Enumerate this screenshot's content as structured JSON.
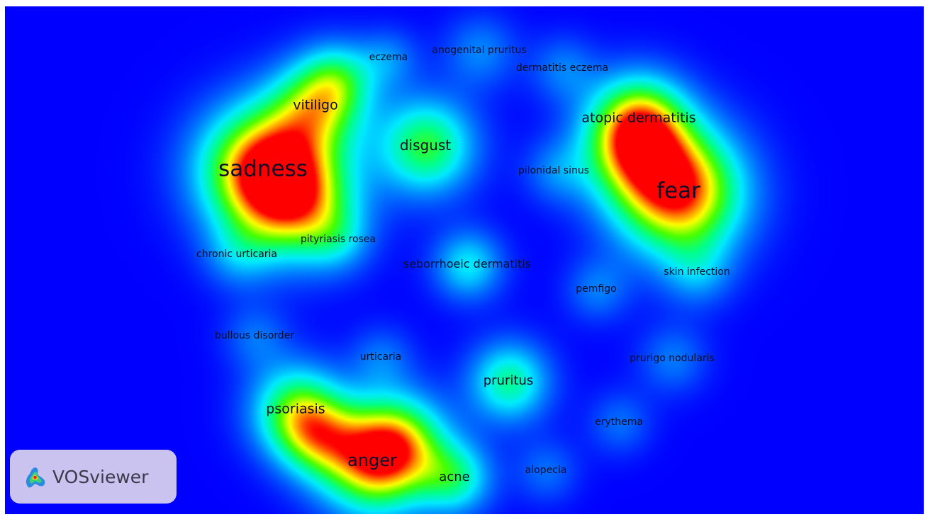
{
  "map": {
    "background": "#0000ff",
    "colormap": [
      "#0000ff",
      "#00e5ff",
      "#00ff99",
      "#66ff00",
      "#ffff00",
      "#ff0000"
    ],
    "keywords": [
      {
        "id": "sadness",
        "label": "sadness",
        "density": 1.0
      },
      {
        "id": "fear",
        "label": "fear",
        "density": 0.97
      },
      {
        "id": "anger",
        "label": "anger",
        "density": 0.82
      },
      {
        "id": "vitiligo",
        "label": "vitiligo",
        "density": 0.55
      },
      {
        "id": "disgust",
        "label": "disgust",
        "density": 0.6
      },
      {
        "id": "atopic-dermatitis",
        "label": "atopic dermatitis",
        "density": 0.55
      },
      {
        "id": "psoriasis",
        "label": "psoriasis",
        "density": 0.6
      },
      {
        "id": "pruritus",
        "label": "pruritus",
        "density": 0.5
      },
      {
        "id": "acne",
        "label": "acne",
        "density": 0.45
      },
      {
        "id": "seborrhoeic-dermatitis",
        "label": "seborrhoeic dermatitis",
        "density": 0.38
      },
      {
        "id": "eczema",
        "label": "eczema",
        "density": 0.2
      },
      {
        "id": "anogenital-pruritus",
        "label": "anogenital pruritus",
        "density": 0.22
      },
      {
        "id": "dermatitis-eczema",
        "label": "dermatitis eczema",
        "density": 0.2
      },
      {
        "id": "pilonidal-sinus",
        "label": "pilonidal sinus",
        "density": 0.18
      },
      {
        "id": "pityriasis-rosea",
        "label": "pityriasis rosea",
        "density": 0.18
      },
      {
        "id": "chronic-urticaria",
        "label": "chronic urticaria",
        "density": 0.2
      },
      {
        "id": "skin-infection",
        "label": "skin infection",
        "density": 0.2
      },
      {
        "id": "pemfigo",
        "label": "pemfigo",
        "density": 0.2
      },
      {
        "id": "bullous-disorder",
        "label": "bullous disorder",
        "density": 0.18
      },
      {
        "id": "urticaria",
        "label": "urticaria",
        "density": 0.18
      },
      {
        "id": "prurigo-nodularis",
        "label": "prurigo nodularis",
        "density": 0.2
      },
      {
        "id": "erythema",
        "label": "erythema",
        "density": 0.18
      },
      {
        "id": "alopecia",
        "label": "alopecia",
        "density": 0.18
      }
    ]
  },
  "logo": {
    "text": "VOSviewer",
    "icon": "vosviewer-logo-icon"
  }
}
